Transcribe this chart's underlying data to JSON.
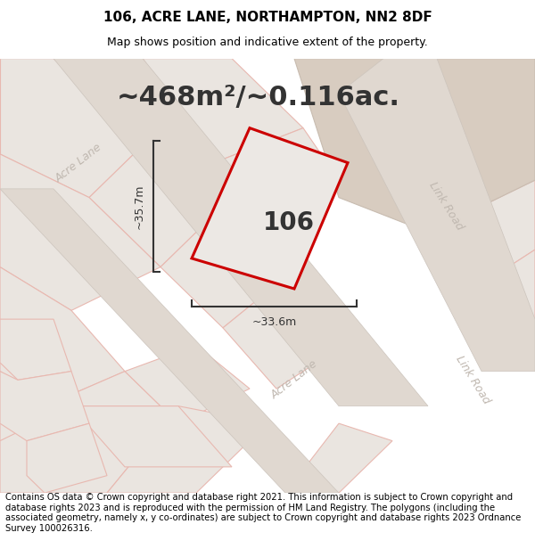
{
  "title": "106, ACRE LANE, NORTHAMPTON, NN2 8DF",
  "subtitle": "Map shows position and indicative extent of the property.",
  "footer": "Contains OS data © Crown copyright and database right 2021. This information is subject to Crown copyright and database rights 2023 and is reproduced with the permission of HM Land Registry. The polygons (including the associated geometry, namely x, y co-ordinates) are subject to Crown copyright and database rights 2023 Ordnance Survey 100026316.",
  "area_label": "~468m²/~0.116ac.",
  "width_label": "~33.6m",
  "height_label": "~35.7m",
  "property_number": "106",
  "map_bg": "#f0ece8",
  "plot_fill": "#eae5e0",
  "plot_edge": "#e8b8b0",
  "road_fill": "#e0d8d0",
  "tan_block_fill": "#d8ccc0",
  "tan_block_edge": "#c8bcb0",
  "property_outline_color": "#cc0000",
  "property_fill": "#ece8e4",
  "dim_color": "#333333",
  "road_label_color": "#c0b8b0",
  "title_fontsize": 11,
  "subtitle_fontsize": 9,
  "footer_fontsize": 7.2,
  "area_fontsize": 22,
  "label_fontsize": 9,
  "number_fontsize": 20,
  "road_label_fontsize": 9
}
